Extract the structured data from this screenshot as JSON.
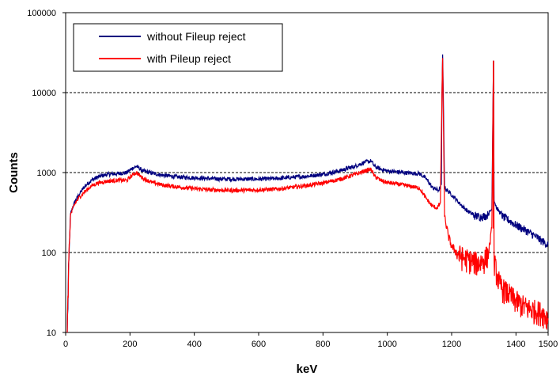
{
  "chart_data": {
    "type": "line",
    "title": "",
    "xlabel": "keV",
    "ylabel": "Counts",
    "xlim": [
      0,
      1500
    ],
    "ylim": [
      10,
      100000
    ],
    "y_scale": "log",
    "x_ticks": [
      0,
      200,
      400,
      600,
      800,
      1000,
      1200,
      1400,
      1500
    ],
    "x_tick_labels": [
      "0",
      "200",
      "400",
      "600",
      "800",
      "1000",
      "1200",
      "1400",
      "1500"
    ],
    "y_ticks": [
      10,
      100,
      1000,
      10000,
      100000
    ],
    "y_tick_labels": [
      "10",
      "100",
      "1000",
      "10000",
      "100000"
    ],
    "grid": "horizontal dashed at 100, 1000, 10000",
    "legend_position": "top-left",
    "series": [
      {
        "name": "without Fileup reject",
        "color": "#00007f",
        "points": [
          [
            5,
            10
          ],
          [
            10,
            80
          ],
          [
            15,
            300
          ],
          [
            25,
            400
          ],
          [
            40,
            520
          ],
          [
            60,
            680
          ],
          [
            80,
            800
          ],
          [
            100,
            880
          ],
          [
            130,
            950
          ],
          [
            160,
            970
          ],
          [
            190,
            1000
          ],
          [
            210,
            1150
          ],
          [
            220,
            1200
          ],
          [
            240,
            1050
          ],
          [
            270,
            980
          ],
          [
            300,
            930
          ],
          [
            350,
            880
          ],
          [
            400,
            860
          ],
          [
            450,
            840
          ],
          [
            500,
            830
          ],
          [
            550,
            830
          ],
          [
            600,
            830
          ],
          [
            650,
            840
          ],
          [
            700,
            870
          ],
          [
            750,
            900
          ],
          [
            800,
            950
          ],
          [
            850,
            1050
          ],
          [
            900,
            1200
          ],
          [
            930,
            1350
          ],
          [
            950,
            1400
          ],
          [
            960,
            1200
          ],
          [
            980,
            1100
          ],
          [
            1000,
            1050
          ],
          [
            1050,
            1000
          ],
          [
            1100,
            970
          ],
          [
            1120,
            850
          ],
          [
            1140,
            650
          ],
          [
            1160,
            600
          ],
          [
            1168,
            700
          ],
          [
            1170,
            10000
          ],
          [
            1172,
            30000
          ],
          [
            1174,
            10000
          ],
          [
            1178,
            650
          ],
          [
            1190,
            580
          ],
          [
            1210,
            480
          ],
          [
            1230,
            390
          ],
          [
            1250,
            330
          ],
          [
            1270,
            290
          ],
          [
            1290,
            280
          ],
          [
            1310,
            290
          ],
          [
            1325,
            350
          ],
          [
            1330,
            25000
          ],
          [
            1332,
            450
          ],
          [
            1340,
            360
          ],
          [
            1360,
            280
          ],
          [
            1380,
            250
          ],
          [
            1400,
            220
          ],
          [
            1420,
            200
          ],
          [
            1440,
            180
          ],
          [
            1460,
            160
          ],
          [
            1480,
            140
          ],
          [
            1500,
            125
          ]
        ]
      },
      {
        "name": "with Pileup reject",
        "color": "#ff0000",
        "points": [
          [
            5,
            10
          ],
          [
            10,
            90
          ],
          [
            15,
            290
          ],
          [
            25,
            380
          ],
          [
            40,
            480
          ],
          [
            60,
            580
          ],
          [
            80,
            680
          ],
          [
            100,
            740
          ],
          [
            130,
            780
          ],
          [
            160,
            800
          ],
          [
            190,
            800
          ],
          [
            210,
            950
          ],
          [
            220,
            1000
          ],
          [
            240,
            850
          ],
          [
            270,
            750
          ],
          [
            300,
            700
          ],
          [
            350,
            660
          ],
          [
            400,
            630
          ],
          [
            450,
            610
          ],
          [
            500,
            600
          ],
          [
            550,
            600
          ],
          [
            600,
            610
          ],
          [
            650,
            620
          ],
          [
            700,
            650
          ],
          [
            750,
            690
          ],
          [
            800,
            740
          ],
          [
            850,
            820
          ],
          [
            900,
            950
          ],
          [
            930,
            1050
          ],
          [
            950,
            1100
          ],
          [
            960,
            900
          ],
          [
            980,
            800
          ],
          [
            1000,
            750
          ],
          [
            1050,
            700
          ],
          [
            1100,
            640
          ],
          [
            1120,
            480
          ],
          [
            1140,
            380
          ],
          [
            1155,
            360
          ],
          [
            1165,
            420
          ],
          [
            1170,
            10000
          ],
          [
            1172,
            27000
          ],
          [
            1174,
            6000
          ],
          [
            1178,
            280
          ],
          [
            1190,
            160
          ],
          [
            1200,
            120
          ],
          [
            1220,
            95
          ],
          [
            1240,
            85
          ],
          [
            1260,
            80
          ],
          [
            1280,
            75
          ],
          [
            1300,
            80
          ],
          [
            1315,
            100
          ],
          [
            1325,
            200
          ],
          [
            1330,
            25000
          ],
          [
            1332,
            80
          ],
          [
            1340,
            55
          ],
          [
            1350,
            40
          ],
          [
            1360,
            35
          ],
          [
            1380,
            30
          ],
          [
            1400,
            25
          ],
          [
            1420,
            22
          ],
          [
            1440,
            20
          ],
          [
            1460,
            19
          ],
          [
            1480,
            18
          ],
          [
            1500,
            15
          ]
        ]
      }
    ]
  }
}
